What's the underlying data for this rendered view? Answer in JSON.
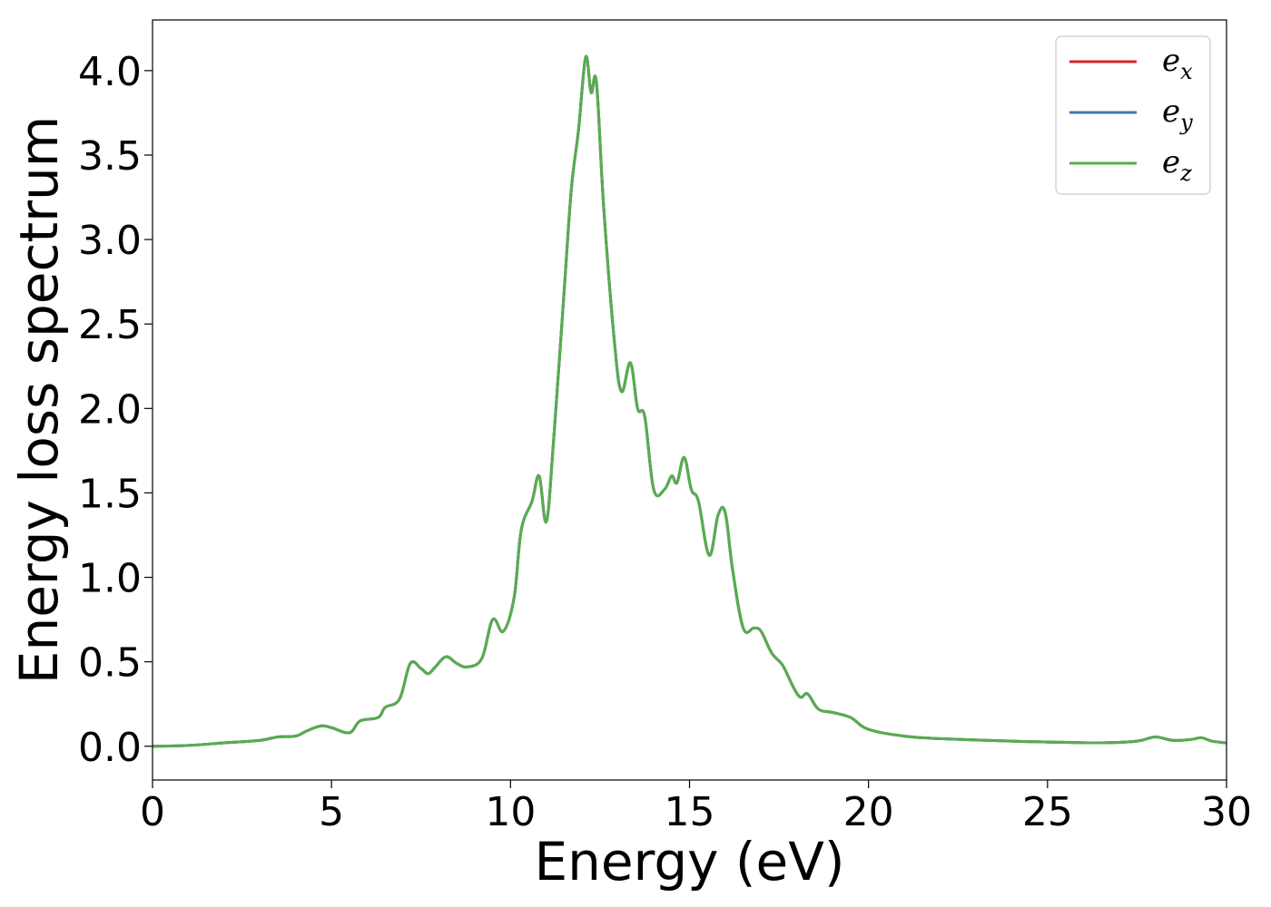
{
  "chart_data": {
    "type": "line",
    "xlabel": "Energy (eV)",
    "ylabel": "Energy loss spectrum",
    "xlim": [
      0,
      30
    ],
    "ylim": [
      -0.2,
      4.3
    ],
    "xticks": [
      "0",
      "5",
      "10",
      "15",
      "20",
      "25",
      "30"
    ],
    "yticks": [
      "0.0",
      "0.5",
      "1.0",
      "1.5",
      "2.0",
      "2.5",
      "3.0",
      "3.5",
      "4.0"
    ],
    "grid": false,
    "legend_position": "top-right",
    "series": [
      {
        "name": "e",
        "subscript": "x",
        "color": "#d62728"
      },
      {
        "name": "e",
        "subscript": "y",
        "color": "#3a78b5"
      },
      {
        "name": "e",
        "subscript": "z",
        "color": "#57ad4e"
      }
    ],
    "x": [
      0,
      1,
      2,
      3,
      3.5,
      4,
      4.3,
      4.7,
      5,
      5.5,
      5.8,
      6.3,
      6.5,
      6.9,
      7.2,
      7.5,
      7.7,
      7.9,
      8.2,
      8.5,
      8.8,
      9.2,
      9.5,
      9.8,
      10.1,
      10.3,
      10.6,
      10.8,
      11.0,
      11.2,
      11.5,
      11.7,
      11.9,
      12.1,
      12.25,
      12.4,
      12.6,
      12.9,
      13.1,
      13.35,
      13.55,
      13.75,
      14.0,
      14.3,
      14.5,
      14.65,
      14.85,
      15.05,
      15.25,
      15.55,
      15.8,
      16.0,
      16.2,
      16.5,
      16.8,
      17.0,
      17.3,
      17.6,
      17.9,
      18.1,
      18.3,
      18.6,
      19.0,
      19.5,
      20.0,
      21.0,
      22.0,
      24.0,
      25.0,
      26.5,
      27.5,
      28.0,
      28.5,
      29.0,
      29.3,
      29.6,
      30.0
    ],
    "y": [
      0.0,
      0.005,
      0.02,
      0.035,
      0.055,
      0.06,
      0.09,
      0.12,
      0.11,
      0.08,
      0.15,
      0.17,
      0.23,
      0.28,
      0.49,
      0.46,
      0.43,
      0.47,
      0.53,
      0.49,
      0.47,
      0.52,
      0.75,
      0.68,
      0.88,
      1.28,
      1.45,
      1.6,
      1.33,
      1.8,
      2.7,
      3.3,
      3.65,
      4.08,
      3.87,
      3.93,
      3.2,
      2.4,
      2.1,
      2.27,
      2.0,
      1.95,
      1.52,
      1.52,
      1.6,
      1.56,
      1.71,
      1.52,
      1.45,
      1.13,
      1.37,
      1.38,
      1.05,
      0.7,
      0.7,
      0.68,
      0.55,
      0.48,
      0.35,
      0.29,
      0.31,
      0.22,
      0.2,
      0.17,
      0.1,
      0.06,
      0.045,
      0.03,
      0.025,
      0.02,
      0.03,
      0.055,
      0.035,
      0.04,
      0.05,
      0.03,
      0.02
    ]
  }
}
